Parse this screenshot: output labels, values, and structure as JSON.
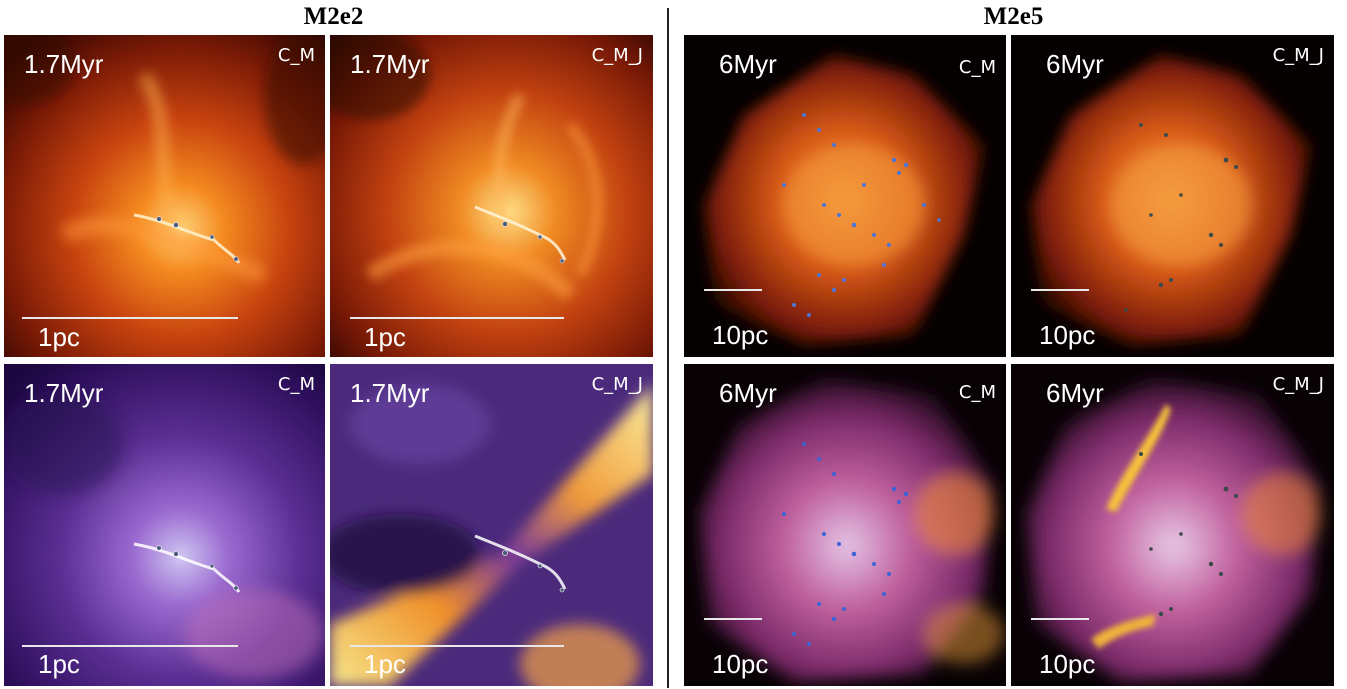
{
  "groups": [
    {
      "title": "M2e2"
    },
    {
      "title": "M2e5"
    }
  ],
  "panels": [
    {
      "time": "1.7Myr",
      "run": "C_M",
      "scale": "1pc",
      "colormap": "fire"
    },
    {
      "time": "1.7Myr",
      "run": "C_M_J",
      "scale": "1pc",
      "colormap": "fire"
    },
    {
      "time": "6Myr",
      "run": "C_M",
      "scale": "10pc",
      "colormap": "fire"
    },
    {
      "time": "6Myr",
      "run": "C_M_J",
      "scale": "10pc",
      "colormap": "fire"
    },
    {
      "time": "1.7Myr",
      "run": "C_M",
      "scale": "1pc",
      "colormap": "plasma"
    },
    {
      "time": "1.7Myr",
      "run": "C_M_J",
      "scale": "1pc",
      "colormap": "plasma"
    },
    {
      "time": "6Myr",
      "run": "C_M",
      "scale": "10pc",
      "colormap": "plasma"
    },
    {
      "time": "6Myr",
      "run": "C_M_J",
      "scale": "10pc",
      "colormap": "plasma"
    }
  ]
}
